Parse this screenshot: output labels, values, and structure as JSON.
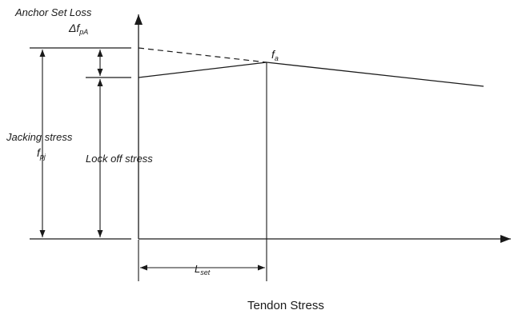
{
  "labels": {
    "anchor_set_loss": "Anchor Set Loss",
    "delta_symbol": "Δf",
    "delta_sub": "pA",
    "fa_main": "f",
    "fa_sub": "a",
    "jacking_stress": "Jacking stress",
    "fpj_main": "f",
    "fpj_sub": "pj",
    "lock_off_stress": "Lock off stress",
    "lset_main": "L",
    "lset_sub": "set",
    "x_axis_title": "Tendon Stress"
  },
  "colors": {
    "line": "#1a1a1a",
    "background": "#ffffff"
  }
}
